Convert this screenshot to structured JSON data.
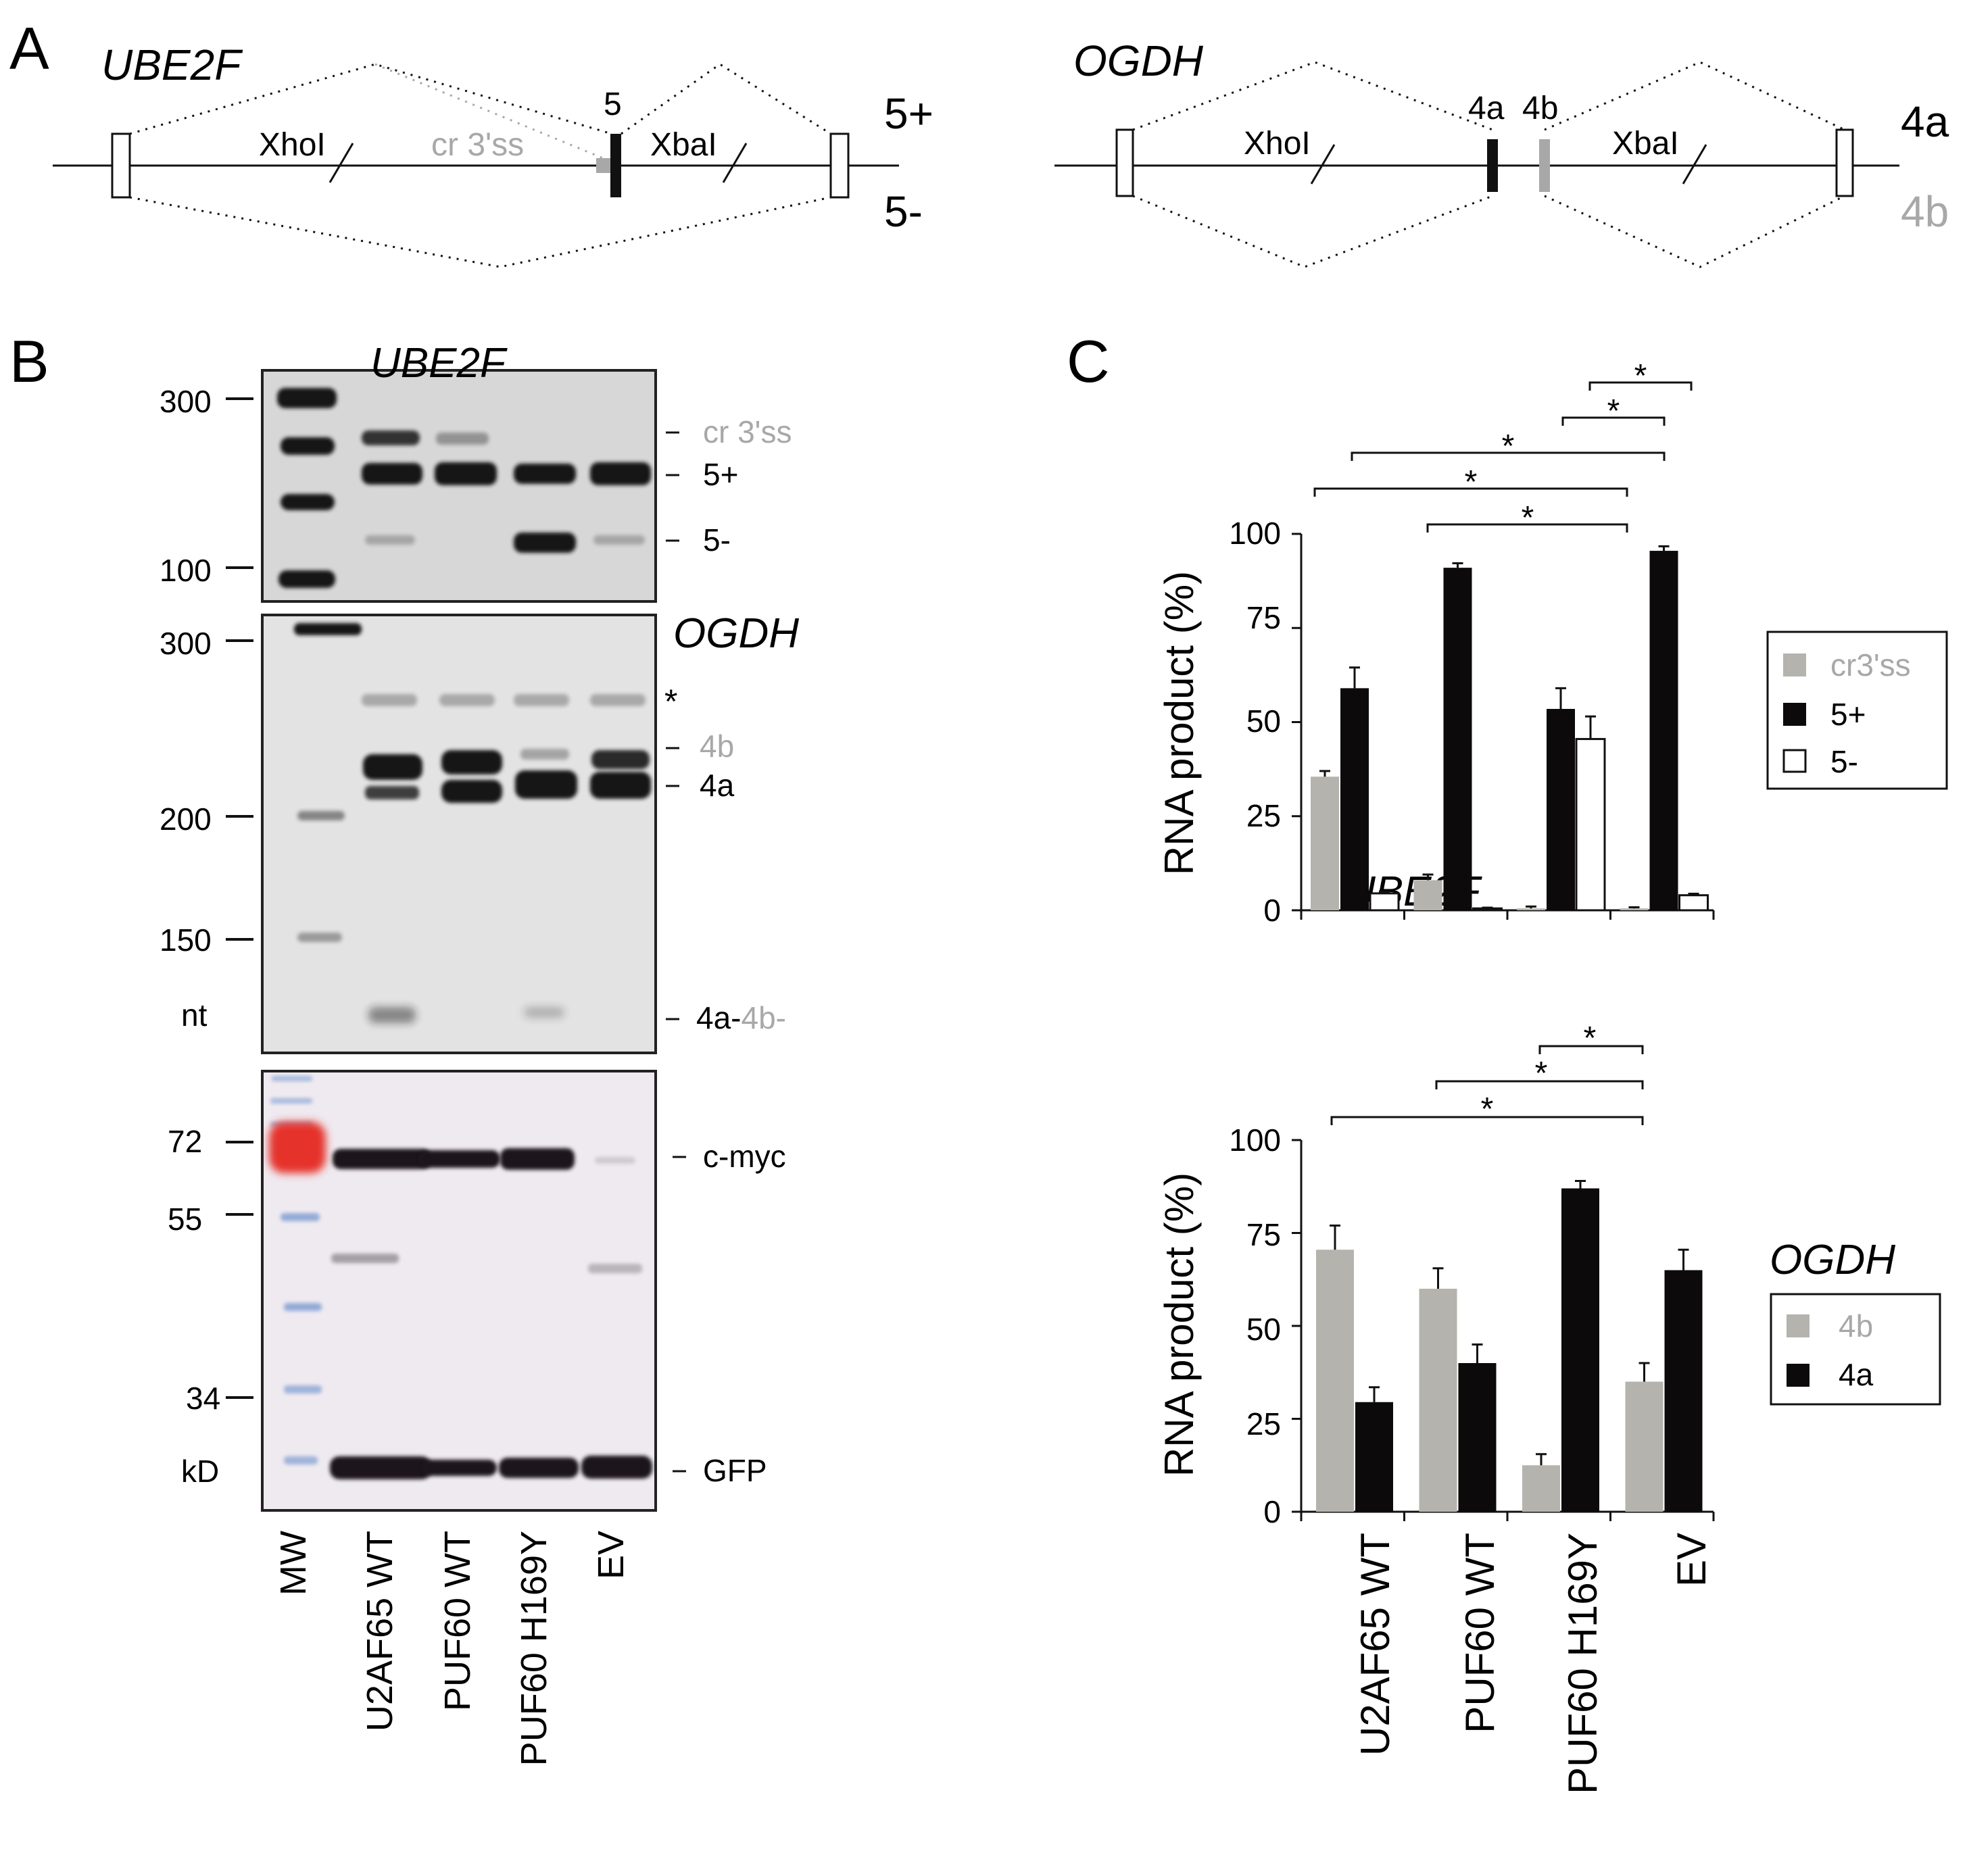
{
  "panel_A": {
    "letter": "A",
    "ube2f": {
      "gene": "UBE2F",
      "xhoi": "XhoI",
      "xbai": "XbaI",
      "cr": "cr 3'ss",
      "exon": "5",
      "plus": "5+",
      "minus": "5-"
    },
    "ogdh": {
      "gene": "OGDH",
      "xhoi": "XhoI",
      "xbai": "XbaI",
      "exon_a": "4a",
      "exon_b": "4b",
      "right_a": "4a",
      "right_b": "4b"
    },
    "colors": {
      "black": "#111111",
      "grey": "#a8a8a8"
    }
  },
  "panel_B": {
    "letter": "B",
    "ube2f_gel": {
      "gene": "UBE2F",
      "markers": [
        "300",
        "100"
      ],
      "bands": [
        "cr 3'ss",
        "5+",
        "5-"
      ]
    },
    "ogdh_gel": {
      "gene": "OGDH",
      "markers": [
        "300",
        "200",
        "150",
        "nt"
      ],
      "star": "*",
      "bands": [
        "4b",
        "4a"
      ],
      "bottom_a": "4a-",
      "bottom_b": "4b-"
    },
    "western": {
      "markers": [
        "72",
        "55",
        "34",
        "kD"
      ],
      "bands": [
        "c-myc",
        "GFP"
      ]
    },
    "lanes": [
      "MW",
      "U2AF65 WT",
      "PUF60 WT",
      "PUF60 H169Y",
      "EV"
    ]
  },
  "panel_C": {
    "letter": "C",
    "chart_data": [
      {
        "type": "bar",
        "title": "UBE2F",
        "ylabel": "RNA product (%)",
        "ylim": [
          0,
          100
        ],
        "yticks": [
          "0",
          "25",
          "50",
          "75",
          "100"
        ],
        "categories": [
          "U2AF65 WT",
          "PUF60 WT",
          "PUF60 H169Y",
          "EV"
        ],
        "series": [
          {
            "name": "cr3'ss",
            "color": "#b5b3ae",
            "values": [
              35.5,
              8,
              0.5,
              0.5
            ],
            "errors": [
              1.5,
              1.5,
              0.5,
              0.3
            ]
          },
          {
            "name": "5+",
            "color": "#0c0a0b",
            "values": [
              59,
              91,
              53.5,
              95.5
            ],
            "errors": [
              5.5,
              1.2,
              5.5,
              1.2
            ]
          },
          {
            "name": "5-",
            "color": "#ffffff",
            "values": [
              4.5,
              0.5,
              45.5,
              4
            ],
            "errors": [
              0.5,
              0.2,
              6,
              0.4
            ]
          }
        ],
        "significance": [
          "*",
          "*",
          "*",
          "*",
          "*"
        ],
        "legend_position": "right"
      },
      {
        "type": "bar",
        "title": "OGDH",
        "ylabel": "RNA product (%)",
        "ylim": [
          0,
          100
        ],
        "yticks": [
          "0",
          "25",
          "50",
          "75",
          "100"
        ],
        "categories": [
          "U2AF65 WT",
          "PUF60 WT",
          "PUF60 H169Y",
          "EV"
        ],
        "series": [
          {
            "name": "4b",
            "color": "#b5b3ae",
            "values": [
              70.5,
              60,
              12.5,
              35
            ],
            "errors": [
              6.5,
              5.5,
              3,
              5
            ]
          },
          {
            "name": "4a",
            "color": "#0c0a0b",
            "values": [
              29.5,
              40,
              87,
              65
            ],
            "errors": [
              4,
              5,
              2,
              5.5
            ]
          }
        ],
        "significance": [
          "*",
          "*",
          "*"
        ],
        "legend_position": "right"
      }
    ]
  }
}
